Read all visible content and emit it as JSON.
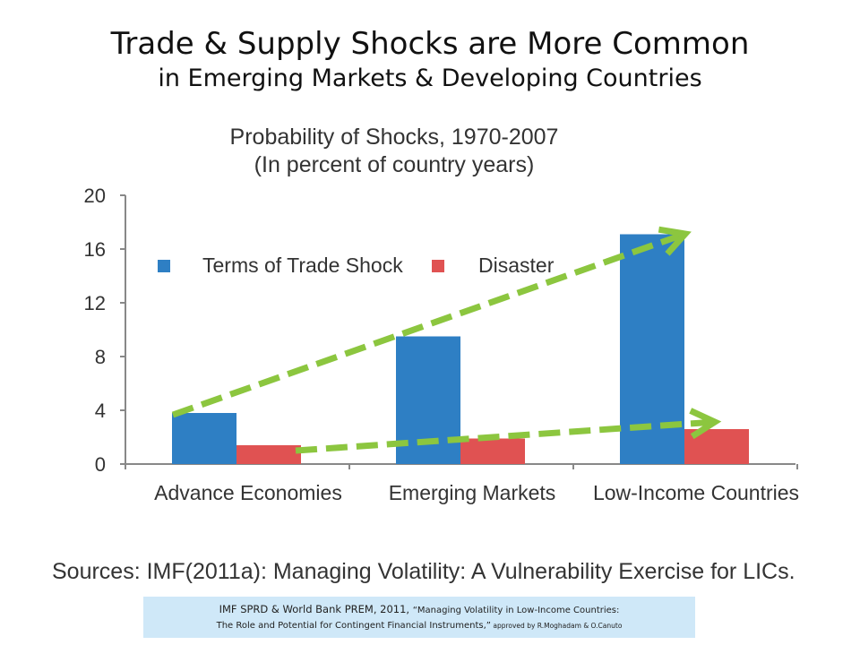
{
  "slide": {
    "title_line1": "Trade & Supply Shocks are More Common",
    "title_line2": "in Emerging Markets & Developing Countries",
    "sources": "Sources: IMF(2011a): Managing Volatility: A Vulnerability Exercise for LICs.",
    "citation": {
      "part1": "IMF SPRD & World Bank PREM, 2011, ",
      "part2": "“Managing Volatility in Low-Income Countries:",
      "part3": "The Role and Potential for Contingent Financial Instruments,”",
      "part4": " approved by R.Moghadam & O.Canuto"
    }
  },
  "chart_data": {
    "type": "bar",
    "title": "Probability of Shocks, 1970-2007",
    "subtitle": "(In percent of country years)",
    "categories": [
      "Advance Economies",
      "Emerging Markets",
      "Low-Income Countries"
    ],
    "series": [
      {
        "name": "Terms of Trade Shock",
        "color": "#2e7fc4",
        "values": [
          3.8,
          9.5,
          17.1
        ]
      },
      {
        "name": "Disaster",
        "color": "#e05252",
        "values": [
          1.4,
          1.9,
          2.6
        ]
      }
    ],
    "ylim": [
      0,
      20
    ],
    "yticks": [
      0,
      4,
      8,
      12,
      16,
      20
    ],
    "xlabel": "",
    "ylabel": "",
    "grid": false,
    "legend": "top-left",
    "annotations": [
      {
        "type": "dashed-arrow",
        "color": "#8cc63f",
        "from": [
          0,
          3.8
        ],
        "to": [
          2,
          17.1
        ]
      },
      {
        "type": "dashed-arrow",
        "color": "#8cc63f",
        "from": [
          0,
          1.0
        ],
        "to": [
          2,
          2.9
        ]
      }
    ]
  }
}
